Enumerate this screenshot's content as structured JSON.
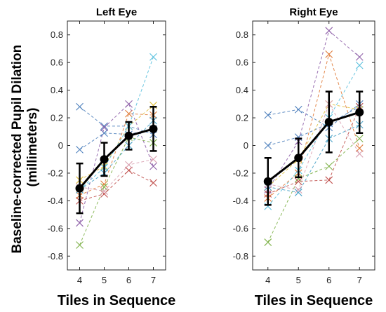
{
  "chart_data": {
    "type": "line",
    "ylabel_line1": "Baseline-corrected Pupil Dilation",
    "ylabel_line2": "(millimeters)",
    "ylim": [
      -0.9,
      0.9
    ],
    "yticks": [
      -0.8,
      -0.6,
      -0.4,
      -0.2,
      0,
      0.2,
      0.4,
      0.6,
      0.8
    ],
    "x": [
      4,
      5,
      6,
      7
    ],
    "xlim": [
      3.5,
      7.5
    ],
    "individual_colors": [
      "#4f81bd",
      "#4f81bd",
      "#e07b39",
      "#e0c040",
      "#8e5fa8",
      "#7fb24a",
      "#5bc0de",
      "#c0504d",
      "#4aa3c8",
      "#d9a0b0"
    ],
    "panels": [
      {
        "title": "Left Eye",
        "xlabel": "Tiles in Sequence",
        "mean": [
          -0.31,
          -0.1,
          0.07,
          0.12
        ],
        "error": [
          0.18,
          0.12,
          0.1,
          0.16
        ],
        "mean_color": "#000000",
        "individuals": [
          [
            0.28,
            0.14,
            0.14,
            0.08
          ],
          [
            -0.03,
            0.09,
            0.08,
            0.12
          ],
          [
            -0.36,
            -0.28,
            0.23,
            0.22
          ],
          [
            -0.25,
            -0.15,
            0.14,
            0.29
          ],
          [
            -0.56,
            0.13,
            0.3,
            -0.15
          ],
          [
            -0.72,
            -0.3,
            0.06,
            0.02
          ],
          [
            -0.32,
            -0.16,
            0.14,
            0.64
          ],
          [
            -0.4,
            -0.35,
            -0.18,
            -0.27
          ],
          [
            -0.32,
            -0.2,
            0.0,
            0.18
          ],
          [
            -0.3,
            -0.33,
            -0.14,
            -0.1
          ]
        ]
      },
      {
        "title": "Right Eye",
        "xlabel": "Tiles in Sequence",
        "mean": [
          -0.26,
          -0.09,
          0.17,
          0.24
        ],
        "error": [
          0.17,
          0.14,
          0.22,
          0.15
        ],
        "mean_color": "#000000",
        "individuals": [
          [
            0.22,
            0.26,
            0.13,
            0.3
          ],
          [
            0.0,
            0.06,
            0.16,
            0.28
          ],
          [
            -0.38,
            -0.2,
            0.66,
            -0.02
          ],
          [
            -0.3,
            -0.1,
            0.3,
            0.26
          ],
          [
            -0.32,
            0.03,
            0.83,
            0.64
          ],
          [
            -0.7,
            -0.24,
            -0.15,
            0.05
          ],
          [
            -0.44,
            -0.18,
            0.2,
            0.58
          ],
          [
            -0.35,
            -0.26,
            -0.25,
            0.28
          ],
          [
            -0.3,
            -0.34,
            0.05,
            0.15
          ],
          [
            -0.28,
            -0.32,
            0.3,
            -0.06
          ]
        ]
      }
    ]
  }
}
